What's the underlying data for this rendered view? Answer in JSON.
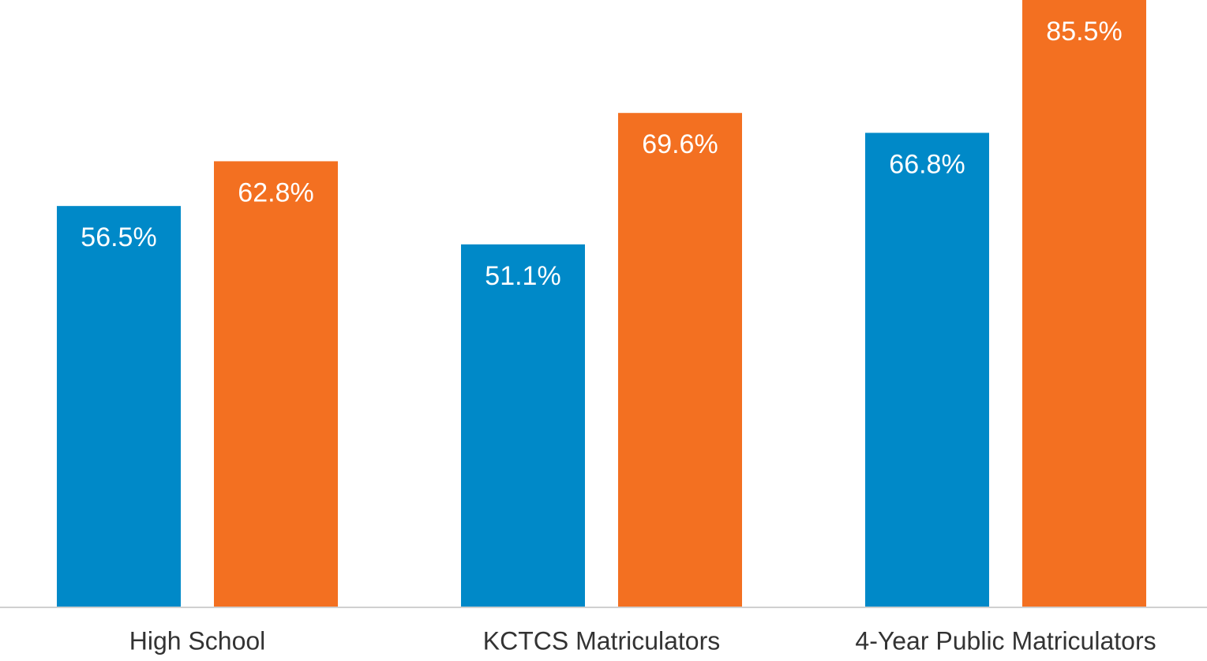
{
  "chart_data": {
    "type": "bar",
    "categories": [
      "High School",
      "KCTCS Matriculators",
      "4-Year Public Matriculators"
    ],
    "series": [
      {
        "color": "#0089c8",
        "values": [
          56.5,
          51.1,
          66.8
        ],
        "value_labels": [
          "56.5%",
          "51.1%",
          "66.8%"
        ]
      },
      {
        "color": "#f37021",
        "values": [
          62.8,
          69.6,
          85.5
        ],
        "value_labels": [
          "62.8%",
          "69.6%",
          "85.5%"
        ]
      }
    ],
    "ylim": [
      0,
      85.5
    ]
  }
}
